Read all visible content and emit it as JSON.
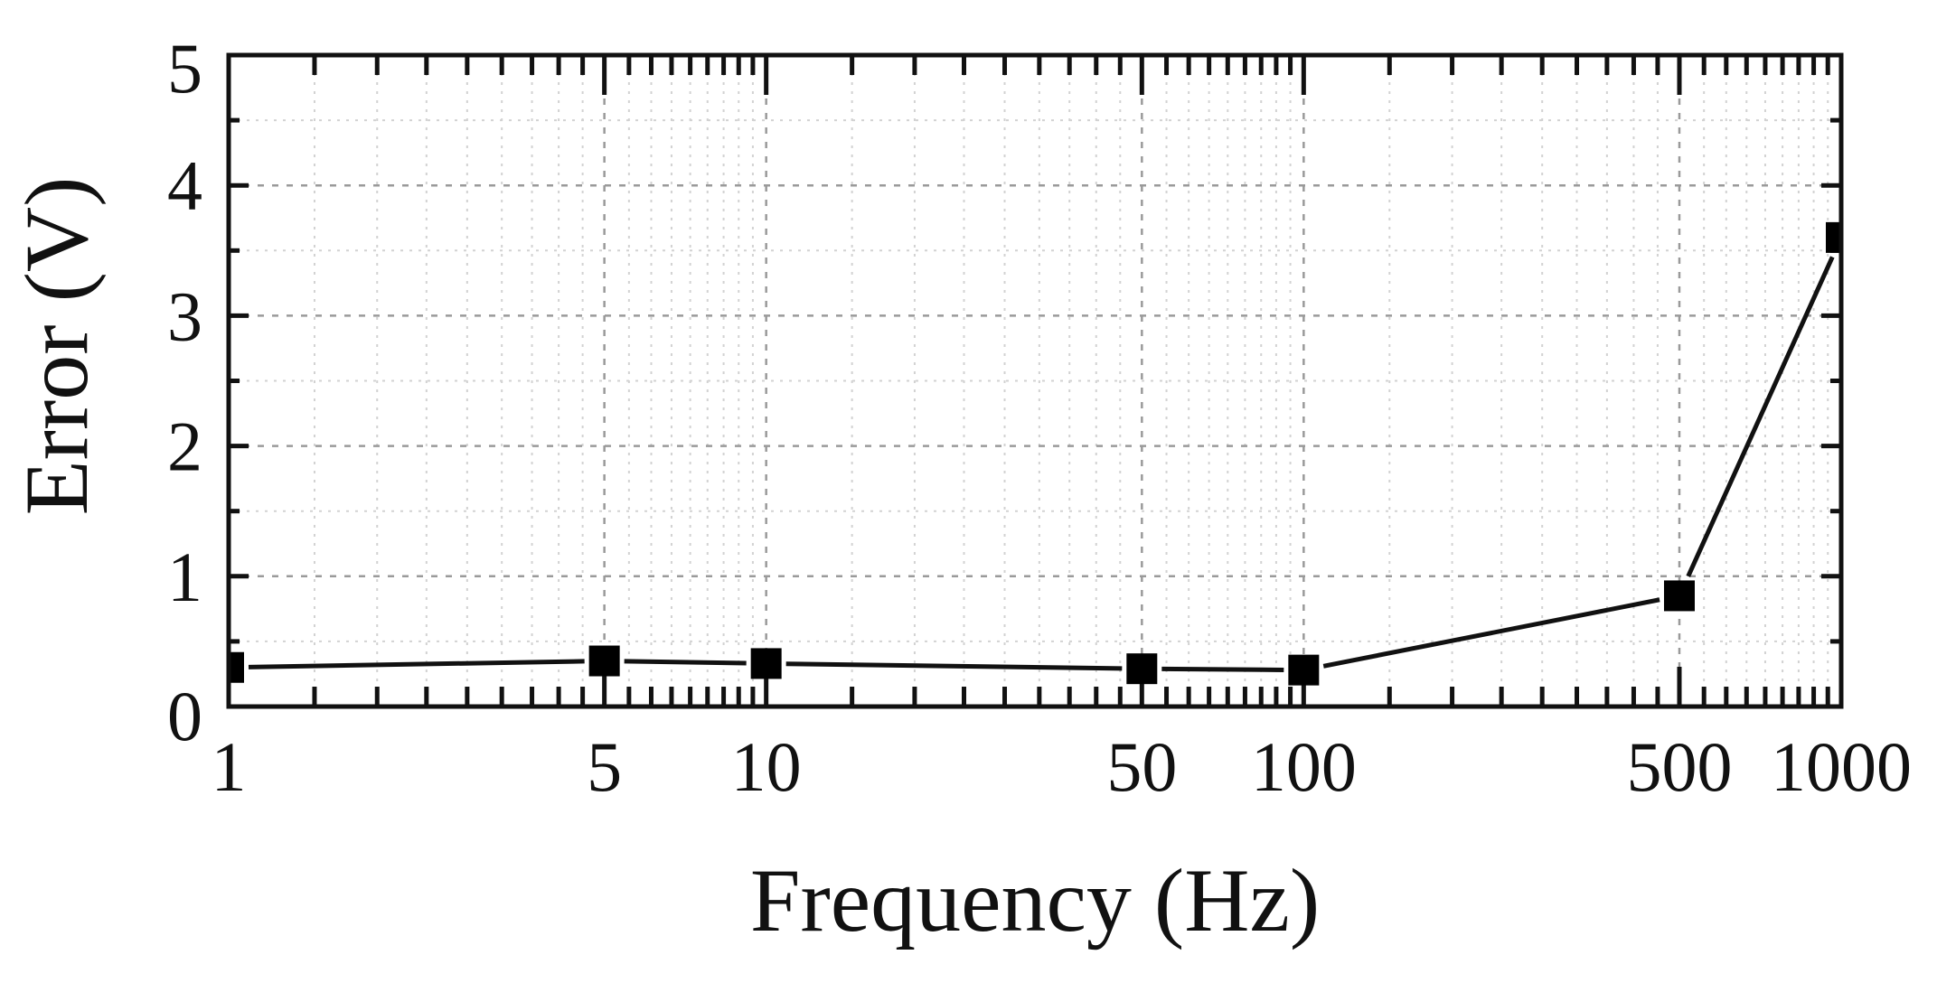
{
  "chart_data": {
    "type": "line",
    "title": "",
    "xlabel": "Frequency (Hz)",
    "ylabel": "Error (V)",
    "xscale": "log",
    "xlim": [
      1,
      1000
    ],
    "ylim": [
      0,
      5
    ],
    "grid": true,
    "legend": null,
    "x_ticks": [
      1,
      5,
      10,
      50,
      100,
      500,
      1000
    ],
    "x_tick_labels": [
      "1",
      "5",
      "10",
      "50",
      "100",
      "500",
      "1000"
    ],
    "y_ticks": [
      0,
      1,
      2,
      3,
      4,
      5
    ],
    "y_tick_labels": [
      "0",
      "1",
      "2",
      "3",
      "4",
      "5"
    ],
    "x": [
      1,
      5,
      10,
      50,
      100,
      500,
      1000
    ],
    "series": [
      {
        "name": "Error",
        "marker": "square",
        "color": "#000000",
        "values": [
          0.3,
          0.35,
          0.33,
          0.29,
          0.28,
          0.85,
          3.6
        ]
      }
    ]
  },
  "axes": {
    "x_title": "Frequency (Hz)",
    "y_title": "Error (V)"
  },
  "colors": {
    "line": "#111111",
    "marker": "#000000",
    "grid_major": "#9a9a9a",
    "grid_minor": "#d2d2d2",
    "background": "#ffffff"
  }
}
